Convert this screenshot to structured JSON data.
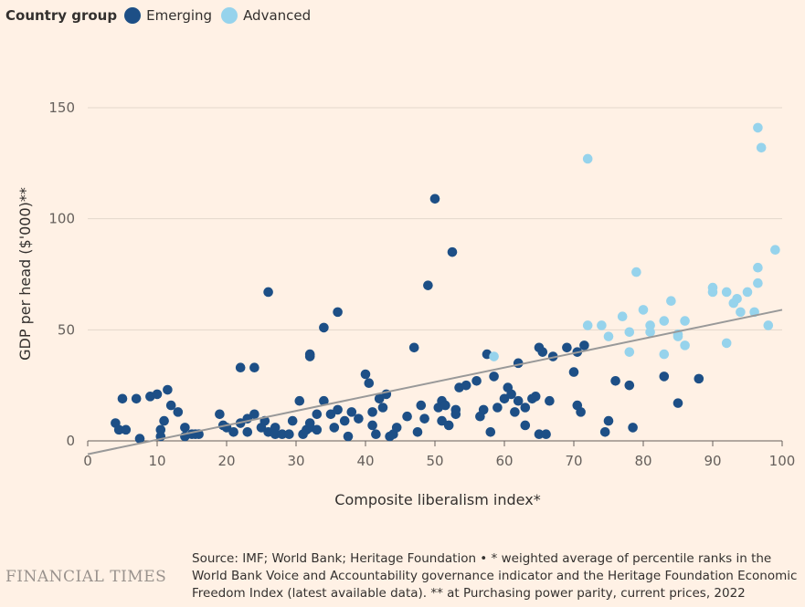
{
  "legend": {
    "title": "Country group",
    "items": [
      {
        "label": "Emerging",
        "color": "#1d4f86"
      },
      {
        "label": "Advanced",
        "color": "#96d3ec"
      }
    ]
  },
  "chart_data": {
    "type": "scatter",
    "xlabel": "Composite liberalism index*",
    "ylabel": "GDP per head ($'000)**",
    "xlim": [
      0,
      100
    ],
    "ylim": [
      0,
      160
    ],
    "xticks": [
      0,
      10,
      20,
      30,
      40,
      50,
      60,
      70,
      80,
      90,
      100
    ],
    "yticks": [
      0,
      50,
      100,
      150
    ],
    "grid": "horizontal",
    "trendline": {
      "x": [
        0,
        100
      ],
      "y": [
        -6,
        59
      ],
      "color": "#999999"
    },
    "series": [
      {
        "name": "Emerging",
        "color": "#1d4f86",
        "points": [
          [
            4,
            8
          ],
          [
            4.5,
            5
          ],
          [
            5,
            19
          ],
          [
            5.5,
            5
          ],
          [
            7,
            19
          ],
          [
            7.5,
            1
          ],
          [
            9,
            20
          ],
          [
            10,
            21
          ],
          [
            10.5,
            5
          ],
          [
            10.5,
            2
          ],
          [
            11,
            9
          ],
          [
            11.5,
            23
          ],
          [
            12,
            16
          ],
          [
            13,
            13
          ],
          [
            14,
            6
          ],
          [
            14,
            2
          ],
          [
            15,
            3
          ],
          [
            15.5,
            3
          ],
          [
            16,
            3
          ],
          [
            19,
            12
          ],
          [
            19.5,
            7
          ],
          [
            20,
            6
          ],
          [
            21,
            4
          ],
          [
            22,
            33
          ],
          [
            22,
            8
          ],
          [
            23,
            4
          ],
          [
            23,
            10
          ],
          [
            24,
            33
          ],
          [
            24,
            12
          ],
          [
            25,
            6
          ],
          [
            25.5,
            9
          ],
          [
            26,
            67
          ],
          [
            26,
            4
          ],
          [
            27,
            6
          ],
          [
            27,
            3
          ],
          [
            28,
            3
          ],
          [
            29,
            3
          ],
          [
            29.5,
            9
          ],
          [
            30.5,
            18
          ],
          [
            31,
            3
          ],
          [
            31.5,
            5
          ],
          [
            32,
            6
          ],
          [
            32,
            39
          ],
          [
            32,
            38
          ],
          [
            32,
            8
          ],
          [
            33,
            12
          ],
          [
            33,
            5
          ],
          [
            34,
            18
          ],
          [
            34,
            51
          ],
          [
            35,
            12
          ],
          [
            35.5,
            6
          ],
          [
            36,
            58
          ],
          [
            36,
            14
          ],
          [
            37,
            9
          ],
          [
            37.5,
            2
          ],
          [
            38,
            13
          ],
          [
            39,
            10
          ],
          [
            40,
            30
          ],
          [
            40.5,
            26
          ],
          [
            41,
            7
          ],
          [
            41,
            13
          ],
          [
            41.5,
            3
          ],
          [
            42,
            19
          ],
          [
            42.5,
            15
          ],
          [
            43,
            21
          ],
          [
            43.5,
            2
          ],
          [
            44,
            3
          ],
          [
            44.5,
            6
          ],
          [
            46,
            11
          ],
          [
            47,
            42
          ],
          [
            47.5,
            4
          ],
          [
            48,
            16
          ],
          [
            48.5,
            10
          ],
          [
            49,
            70
          ],
          [
            50,
            109
          ],
          [
            50.5,
            15
          ],
          [
            51,
            18
          ],
          [
            51,
            9
          ],
          [
            51.5,
            16
          ],
          [
            52,
            7
          ],
          [
            52.5,
            85
          ],
          [
            53,
            14
          ],
          [
            53,
            12
          ],
          [
            53.5,
            24
          ],
          [
            54.5,
            25
          ],
          [
            56,
            27
          ],
          [
            56.5,
            11
          ],
          [
            57,
            14
          ],
          [
            57.5,
            39
          ],
          [
            58,
            4
          ],
          [
            58.5,
            29
          ],
          [
            59,
            15
          ],
          [
            60,
            19
          ],
          [
            60.5,
            24
          ],
          [
            61,
            21
          ],
          [
            61.5,
            13
          ],
          [
            62,
            35
          ],
          [
            62,
            18
          ],
          [
            63,
            15
          ],
          [
            63,
            7
          ],
          [
            64,
            19
          ],
          [
            64.5,
            20
          ],
          [
            65,
            42
          ],
          [
            65,
            3
          ],
          [
            65.5,
            40
          ],
          [
            66,
            3
          ],
          [
            66.5,
            18
          ],
          [
            67,
            38
          ],
          [
            69,
            42
          ],
          [
            70,
            31
          ],
          [
            70.5,
            40
          ],
          [
            70.5,
            16
          ],
          [
            71,
            13
          ],
          [
            71.5,
            43
          ],
          [
            74.5,
            4
          ],
          [
            75,
            9
          ],
          [
            76,
            27
          ],
          [
            78,
            25
          ],
          [
            78.5,
            6
          ],
          [
            83,
            29
          ],
          [
            85,
            17
          ],
          [
            88,
            28
          ]
        ]
      },
      {
        "name": "Advanced",
        "color": "#96d3ec",
        "points": [
          [
            58.5,
            38
          ],
          [
            72,
            52
          ],
          [
            72,
            127
          ],
          [
            74,
            52
          ],
          [
            75,
            47
          ],
          [
            77,
            56
          ],
          [
            78,
            49
          ],
          [
            78,
            40
          ],
          [
            79,
            76
          ],
          [
            80,
            59
          ],
          [
            81,
            49
          ],
          [
            81,
            52
          ],
          [
            83,
            54
          ],
          [
            83,
            39
          ],
          [
            84,
            63
          ],
          [
            85,
            47
          ],
          [
            85,
            48
          ],
          [
            86,
            54
          ],
          [
            86,
            43
          ],
          [
            90,
            69
          ],
          [
            90,
            67
          ],
          [
            92,
            67
          ],
          [
            92,
            44
          ],
          [
            93,
            62
          ],
          [
            93.5,
            64
          ],
          [
            94,
            58
          ],
          [
            95,
            67
          ],
          [
            96,
            58
          ],
          [
            96.5,
            141
          ],
          [
            96.5,
            78
          ],
          [
            96.5,
            71
          ],
          [
            97,
            132
          ],
          [
            98,
            52
          ],
          [
            99,
            86
          ]
        ]
      }
    ]
  },
  "footer": {
    "brand": "FINANCIAL TIMES",
    "source": "Source: IMF; World Bank; Heritage Foundation • * weighted average of percentile ranks in the World Bank Voice and Accountability governance indicator and the Heritage Foundation Economic Freedom Index (latest available data). ** at Purchasing power parity, current prices, 2022"
  }
}
